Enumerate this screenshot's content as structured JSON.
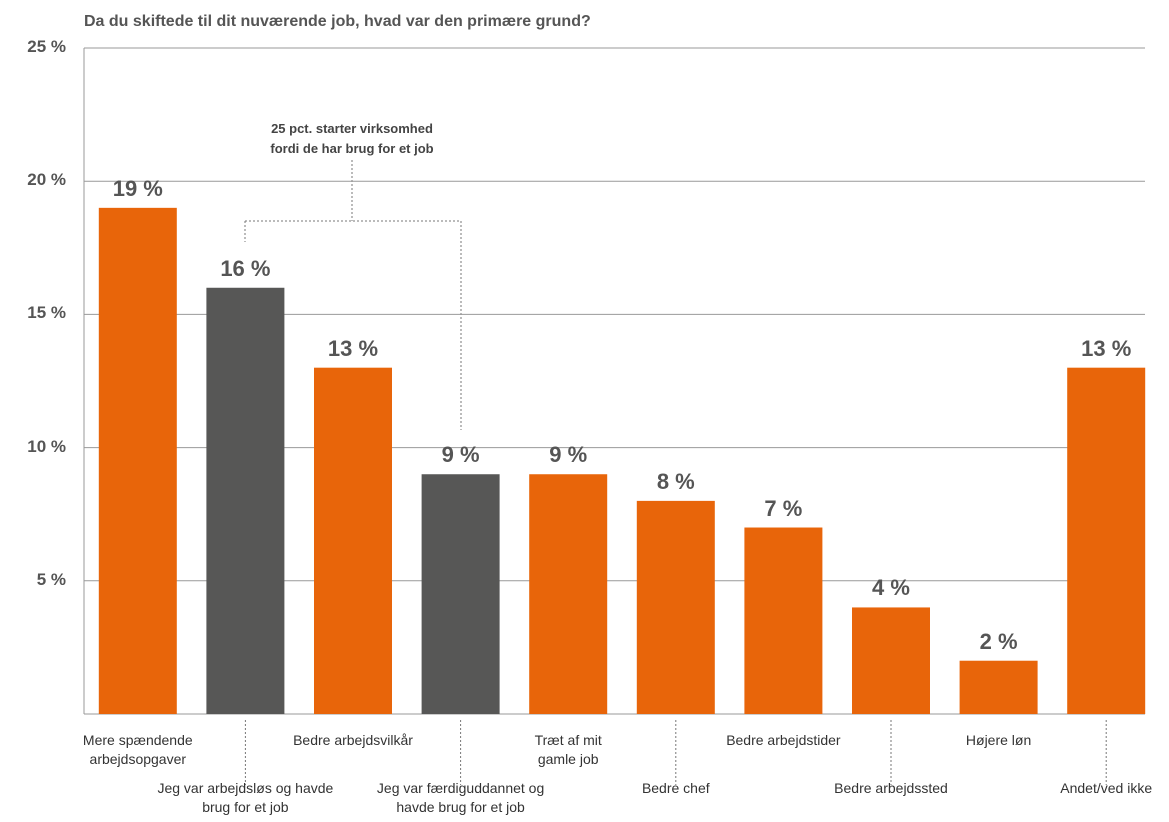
{
  "chart_data": {
    "type": "bar",
    "title": "Da du skiftede til dit nuværende job, hvad var den primære grund?",
    "annotation": "25 pct. starter virksomhed fordi de har brug for et job",
    "categories": [
      "Mere spændende arbejdsopgaver",
      "Jeg var arbejdsløs og havde brug for et job",
      "Bedre arbejdsvilkår",
      "Jeg var færdiguddannet og havde brug for et job",
      "Træt af mit gamle job",
      "Bedre chef",
      "Bedre arbejdstider",
      "Bedre arbejdssted",
      "Højere løn",
      "Andet/ved ikke"
    ],
    "values": [
      19,
      16,
      13,
      9,
      9,
      8,
      7,
      4,
      2,
      13
    ],
    "value_labels": [
      "19 %",
      "16 %",
      "13 %",
      "9 %",
      "9 %",
      "8 %",
      "7 %",
      "4 %",
      "2 %",
      "13 %"
    ],
    "colors": [
      "#e8650a",
      "#575756",
      "#e8650a",
      "#575756",
      "#e8650a",
      "#e8650a",
      "#e8650a",
      "#e8650a",
      "#e8650a",
      "#e8650a"
    ],
    "ylim": [
      0,
      25
    ],
    "yticks": [
      {
        "value": 5,
        "label": "5 %"
      },
      {
        "value": 10,
        "label": "10 %"
      },
      {
        "value": 15,
        "label": "15 %"
      },
      {
        "value": 20,
        "label": "20 %"
      },
      {
        "value": 25,
        "label": "25 %"
      }
    ],
    "grid": true
  }
}
